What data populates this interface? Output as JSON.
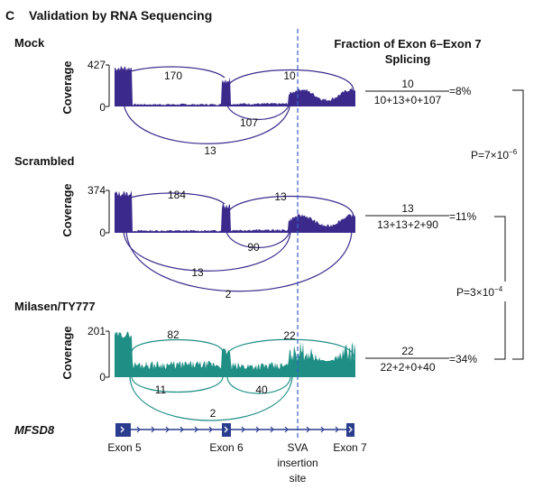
{
  "panel": {
    "letter": "C",
    "title": "Validation by RNA Sequencing"
  },
  "fraction_header": {
    "line1": "Fraction of Exon 6–Exon 7",
    "line2": "Splicing"
  },
  "coverage_label": "Coverage",
  "colors": {
    "purple": "#3b2a8c",
    "teal": "#1f8f85",
    "dash": "#3a62c8"
  },
  "chart_data": [
    {
      "type": "area",
      "name": "Mock",
      "ylabel": "Coverage",
      "ylim": [
        0,
        427
      ],
      "yticks": [
        "427",
        "0"
      ],
      "color": "#3b2a8c",
      "junctions": [
        {
          "label": "170",
          "from": "Exon 5",
          "to": "Exon 6",
          "side": "above"
        },
        {
          "label": "10",
          "from": "Exon 6",
          "to": "Exon 7",
          "side": "above"
        },
        {
          "label": "107",
          "from": "Exon 6",
          "to": "SVA insertion site",
          "side": "below"
        },
        {
          "label": "13",
          "from": "Exon 5",
          "to": "SVA insertion site",
          "side": "below"
        }
      ],
      "fraction": {
        "numerator": "10",
        "denominator": "10+13+0+107",
        "value": "=8%"
      }
    },
    {
      "type": "area",
      "name": "Scrambled",
      "ylabel": "Coverage",
      "ylim": [
        0,
        374
      ],
      "yticks": [
        "374",
        "0"
      ],
      "color": "#3b2a8c",
      "junctions": [
        {
          "label": "184",
          "from": "Exon 5",
          "to": "Exon 6",
          "side": "above"
        },
        {
          "label": "13",
          "from": "Exon 6",
          "to": "Exon 7",
          "side": "above"
        },
        {
          "label": "90",
          "from": "Exon 6",
          "to": "SVA insertion site",
          "side": "below"
        },
        {
          "label": "13",
          "from": "Exon 5",
          "to": "SVA insertion site",
          "side": "below"
        },
        {
          "label": "2",
          "from": "Exon 5",
          "to": "Exon 7",
          "side": "below"
        }
      ],
      "fraction": {
        "numerator": "13",
        "denominator": "13+13+2+90",
        "value": "=11%"
      }
    },
    {
      "type": "area",
      "name": "Milasen/TY777",
      "ylabel": "Coverage",
      "ylim": [
        0,
        201
      ],
      "yticks": [
        "201",
        "0"
      ],
      "color": "#1f8f85",
      "junctions": [
        {
          "label": "82",
          "from": "Exon 5",
          "to": "Exon 6",
          "side": "above"
        },
        {
          "label": "22",
          "from": "Exon 6",
          "to": "Exon 7",
          "side": "above"
        },
        {
          "label": "11",
          "from": "Exon 5",
          "to": "Exon 6",
          "side": "below"
        },
        {
          "label": "40",
          "from": "Exon 6",
          "to": "SVA insertion site",
          "side": "below"
        },
        {
          "label": "2",
          "from": "Exon 5",
          "to": "SVA insertion site",
          "side": "below"
        }
      ],
      "fraction": {
        "numerator": "22",
        "denominator": "22+2+0+40",
        "value": "=34%"
      }
    }
  ],
  "pvalues": {
    "p1": {
      "base": "P=7×10",
      "exp": "−6"
    },
    "p2": {
      "base": "P=3×10",
      "exp": "−4"
    }
  },
  "gene": {
    "name": "MFSD8",
    "exons": [
      "Exon 5",
      "Exon 6",
      "Exon 7"
    ],
    "site_label": [
      "SVA",
      "insertion",
      "site"
    ]
  }
}
